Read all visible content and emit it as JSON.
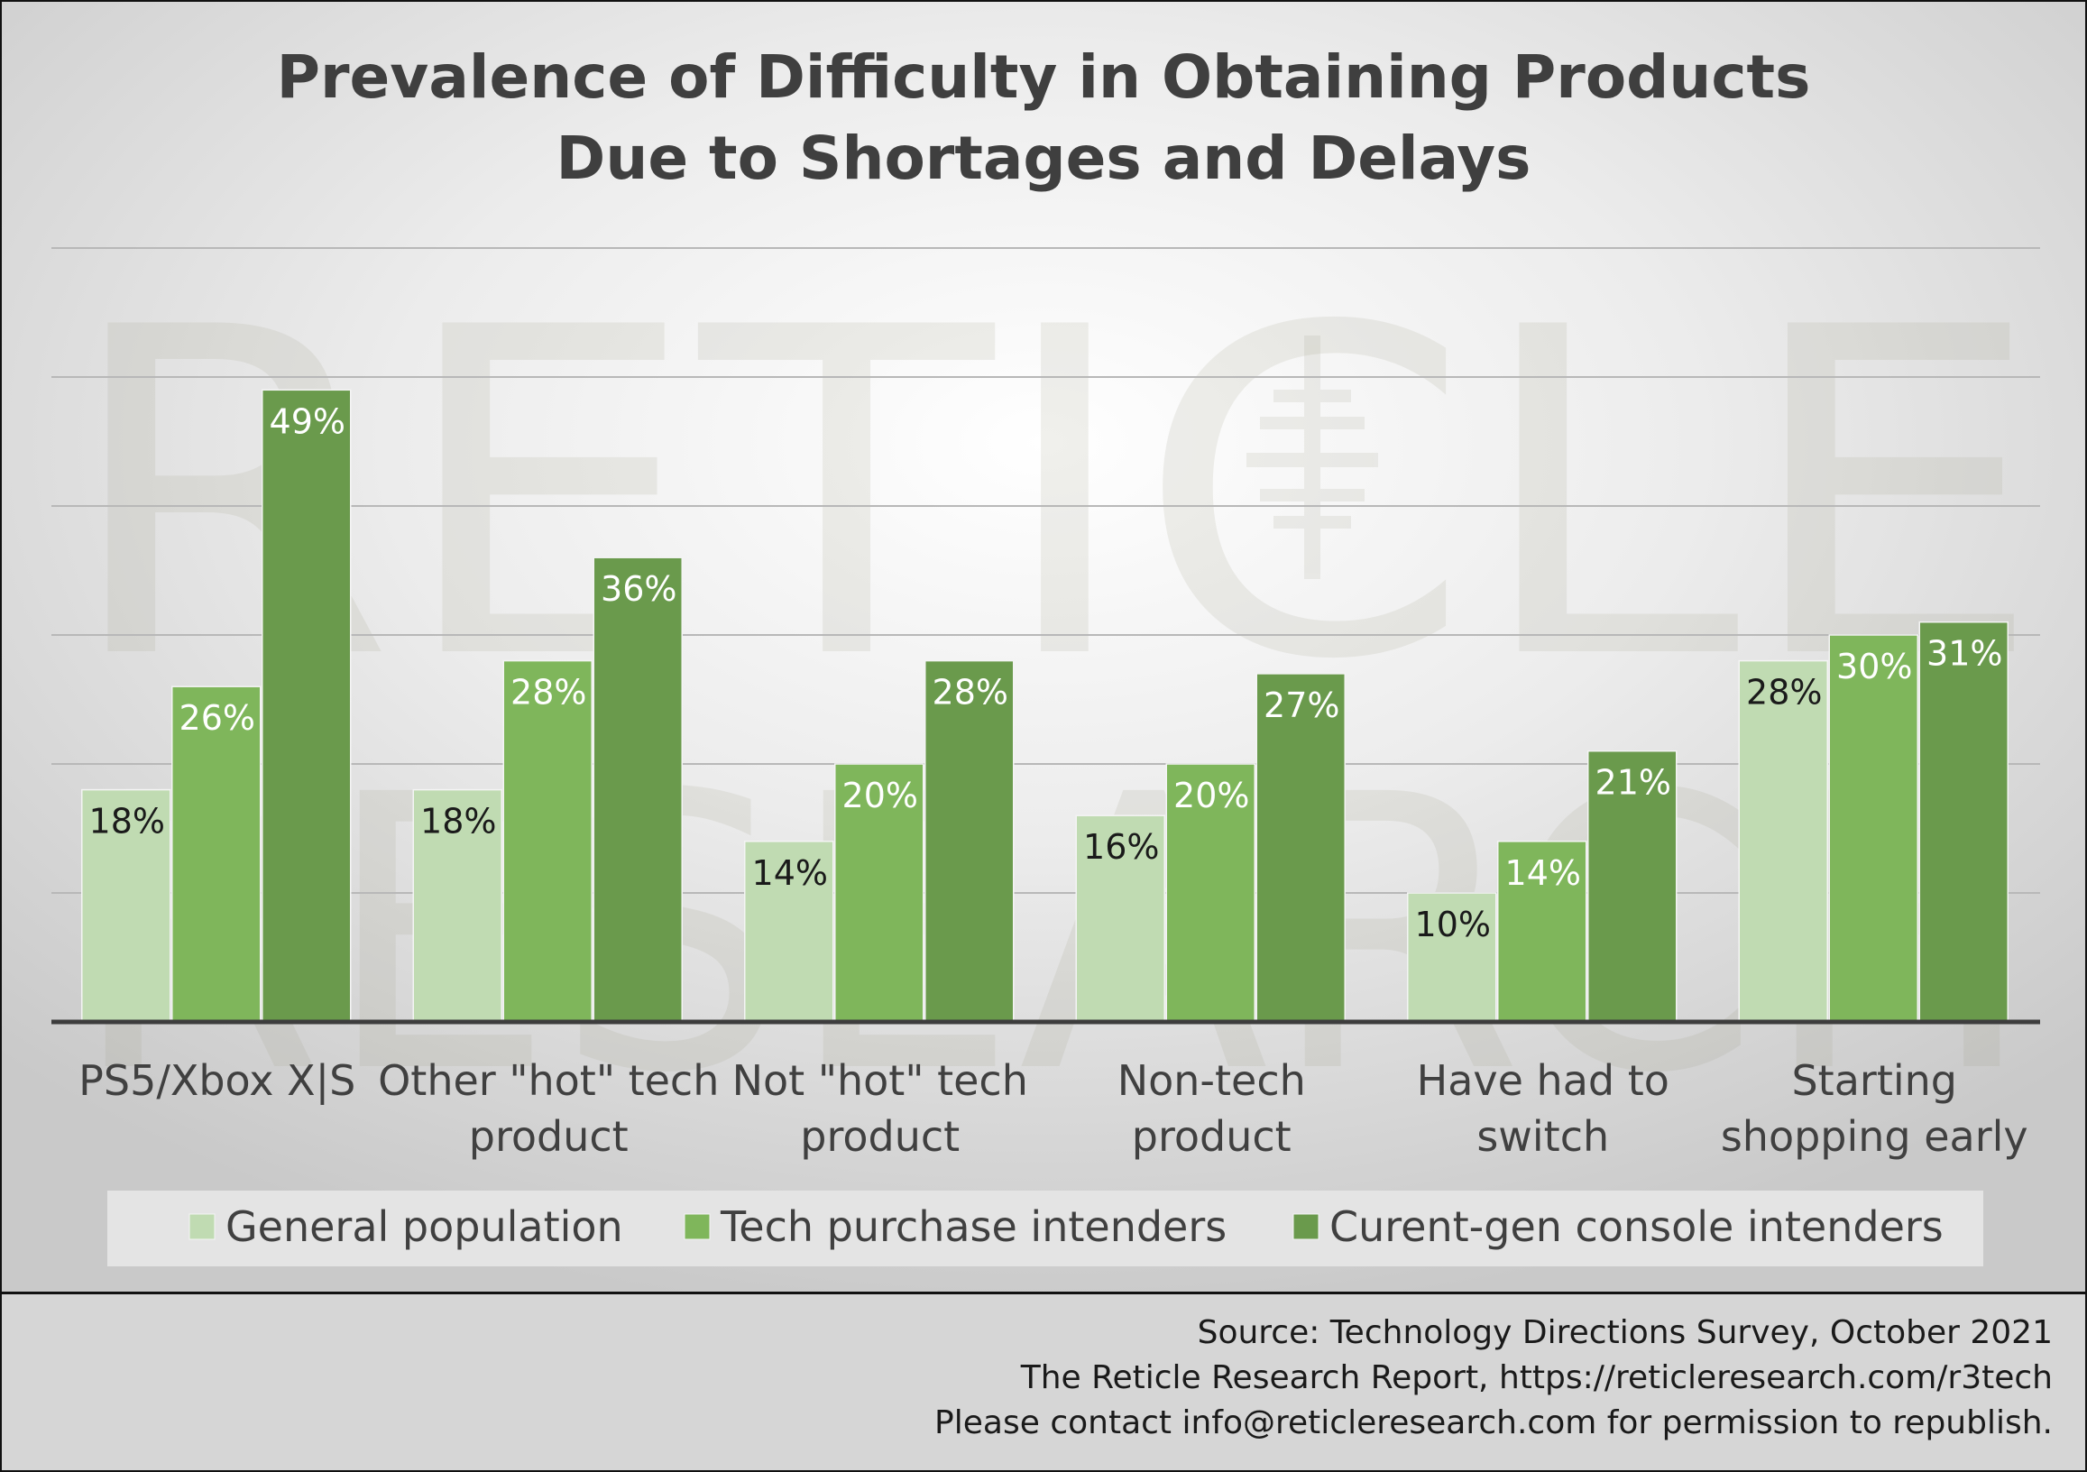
{
  "colors": {
    "general": "#c0dbb2",
    "tech": "#7fb65b",
    "console": "#6a9a4c",
    "axis": "#3d3d3d",
    "grid": "#b8b8b8",
    "legend_bg": "#e4e4e4"
  },
  "watermark": {
    "line1": "RETICLE",
    "line2": "RESEARCH"
  },
  "chart_data": {
    "type": "bar",
    "title": "Prevalence of Difficulty in Obtaining Products Due to Shortages and Delays",
    "title_lines": [
      "Prevalence of Difficulty in Obtaining Products",
      "Due to Shortages and Delays"
    ],
    "categories": [
      [
        "PS5/Xbox X|S"
      ],
      [
        "Other \"hot\" tech",
        "product"
      ],
      [
        "Not \"hot\" tech",
        "product"
      ],
      [
        "Non-tech",
        "product"
      ],
      [
        "Have had to",
        "switch"
      ],
      [
        "Starting",
        "shopping early"
      ]
    ],
    "series": [
      {
        "name": "General population",
        "values": [
          18,
          18,
          14,
          16,
          10,
          28
        ],
        "labels": [
          "18%",
          "18%",
          "14%",
          "16%",
          "10%",
          "28%"
        ]
      },
      {
        "name": "Tech purchase intenders",
        "values": [
          26,
          28,
          20,
          20,
          14,
          30
        ],
        "labels": [
          "26%",
          "28%",
          "20%",
          "20%",
          "14%",
          "30%"
        ]
      },
      {
        "name": "Curent-gen console intenders",
        "values": [
          49,
          36,
          28,
          27,
          21,
          31
        ],
        "labels": [
          "49%",
          "36%",
          "28%",
          "27%",
          "21%",
          "31%"
        ]
      }
    ],
    "ylim": [
      0,
      60
    ],
    "y_unit": "%",
    "gridlines": [
      10,
      20,
      30,
      40,
      50,
      60
    ],
    "grid": true,
    "legend_position": "bottom"
  },
  "footer": {
    "line1": "Source: Technology Directions Survey, October 2021",
    "line2": "The Reticle Research Report, https://reticleresearch.com/r3tech",
    "line3": "Please contact info@reticleresearch.com for permission to republish."
  }
}
